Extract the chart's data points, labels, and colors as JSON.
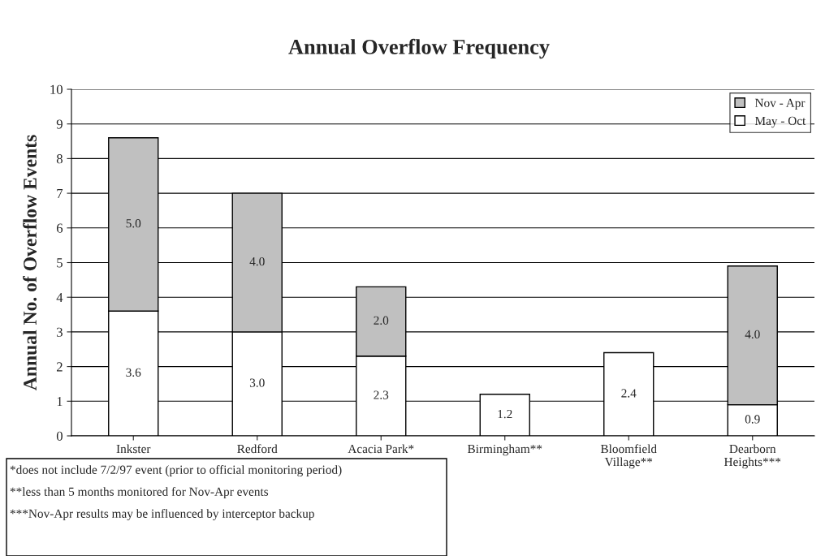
{
  "chart_data": {
    "type": "bar",
    "title": "Annual Overflow Frequency",
    "ylabel": "Annual No. of Overflow Events",
    "categories": [
      "Inkster",
      "Redford",
      "Acacia Park*",
      "Birmingham**",
      "Bloomfield\nVillage**",
      "Dearborn\nHeights***"
    ],
    "stacked": true,
    "series": [
      {
        "name": "May - Oct",
        "color": "#ffffff",
        "values": [
          3.6,
          3.0,
          2.3,
          1.2,
          2.4,
          0.9
        ],
        "value_labels": [
          "3.6",
          "3.0",
          "2.3",
          "1.2",
          "2.4",
          "0.9"
        ]
      },
      {
        "name": "Nov - Apr",
        "color": "#c0c0c0",
        "values": [
          5.0,
          4.0,
          2.0,
          null,
          null,
          4.0
        ],
        "value_labels": [
          "5.0",
          "4.0",
          "2.0",
          null,
          null,
          "4.0"
        ]
      }
    ],
    "ylim": [
      0,
      10
    ],
    "yticks": [
      0,
      1,
      2,
      3,
      4,
      5,
      6,
      7,
      8,
      9,
      10
    ],
    "grid": "y",
    "legend": "top right",
    "annotations": [
      "*does not include 7/2/97 event (prior to official monitoring period)",
      "**less than 5 months monitored for Nov-Apr events",
      "***Nov-Apr results may be influenced by interceptor backup"
    ]
  }
}
